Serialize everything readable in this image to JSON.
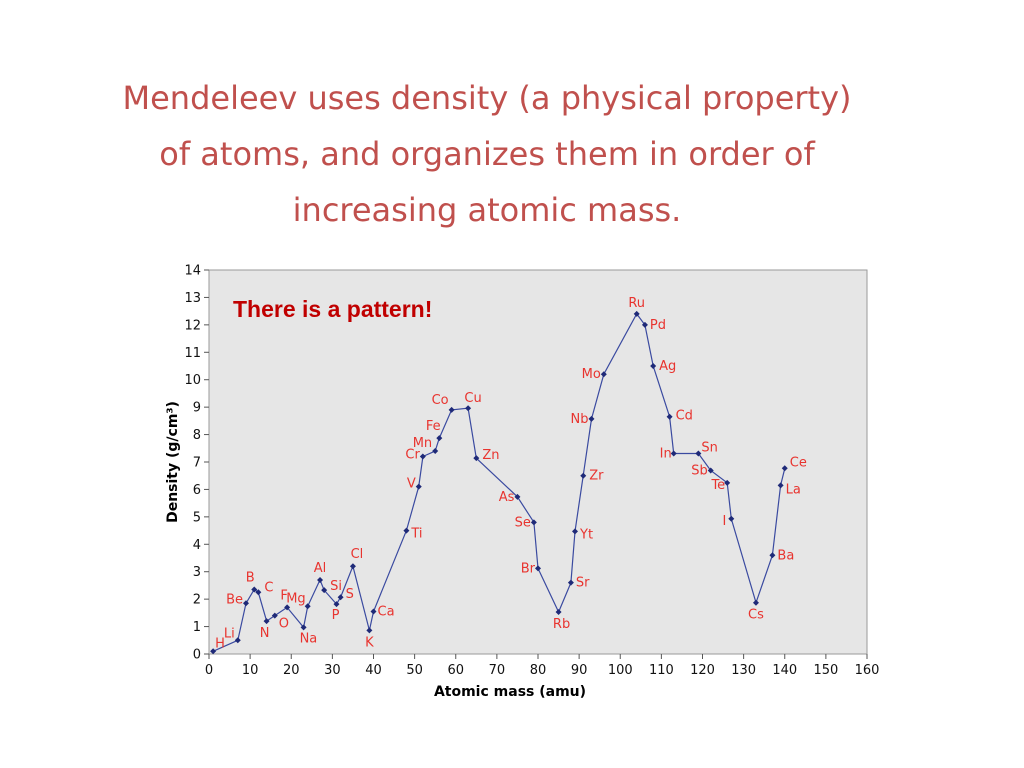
{
  "slide": {
    "title_lines": [
      "Mendeleev uses density (a physical property)",
      "of atoms, and organizes them in order of",
      "increasing atomic mass."
    ],
    "title_color": "#c0504d"
  },
  "chart_data": {
    "type": "line",
    "title": "",
    "xlabel": "Atomic mass (amu)",
    "ylabel": "Density (g/cm³)",
    "xlim": [
      0,
      160
    ],
    "ylim": [
      0,
      14
    ],
    "x_ticks": [
      0,
      10,
      20,
      30,
      40,
      50,
      60,
      70,
      80,
      90,
      100,
      110,
      120,
      130,
      140,
      150,
      160
    ],
    "y_ticks": [
      0,
      1,
      2,
      3,
      4,
      5,
      6,
      7,
      8,
      9,
      10,
      11,
      12,
      13,
      14
    ],
    "grid": false,
    "annotation": "There is a pattern!",
    "colors": {
      "line": "#3a4aa0",
      "marker": "#1f2a78",
      "labels": "#e8342f",
      "plot_bg": "#e6e6e6",
      "annotation": "#c00000"
    },
    "points": [
      {
        "label": "H",
        "x": 1,
        "y": 0.1
      },
      {
        "label": "Li",
        "x": 7,
        "y": 0.5
      },
      {
        "label": "Be",
        "x": 9,
        "y": 1.85
      },
      {
        "label": "B",
        "x": 11,
        "y": 2.35
      },
      {
        "label": "C",
        "x": 12,
        "y": 2.25
      },
      {
        "label": "N",
        "x": 14,
        "y": 1.2
      },
      {
        "label": "O",
        "x": 16,
        "y": 1.4
      },
      {
        "label": "F",
        "x": 19,
        "y": 1.7
      },
      {
        "label": "Na",
        "x": 23,
        "y": 0.97
      },
      {
        "label": "Mg",
        "x": 24,
        "y": 1.74
      },
      {
        "label": "Al",
        "x": 27,
        "y": 2.7
      },
      {
        "label": "Si",
        "x": 28,
        "y": 2.33
      },
      {
        "label": "P",
        "x": 31,
        "y": 1.82
      },
      {
        "label": "S",
        "x": 32,
        "y": 2.07
      },
      {
        "label": "Cl",
        "x": 35,
        "y": 3.2
      },
      {
        "label": "K",
        "x": 39,
        "y": 0.86
      },
      {
        "label": "Ca",
        "x": 40,
        "y": 1.55
      },
      {
        "label": "Ti",
        "x": 48,
        "y": 4.5
      },
      {
        "label": "V",
        "x": 51,
        "y": 6.1
      },
      {
        "label": "Cr",
        "x": 52,
        "y": 7.2
      },
      {
        "label": "Mn",
        "x": 55,
        "y": 7.4
      },
      {
        "label": "Fe",
        "x": 56,
        "y": 7.87
      },
      {
        "label": "Co",
        "x": 59,
        "y": 8.9
      },
      {
        "label": "Cu",
        "x": 63,
        "y": 8.96
      },
      {
        "label": "Zn",
        "x": 65,
        "y": 7.14
      },
      {
        "label": "As",
        "x": 75,
        "y": 5.73
      },
      {
        "label": "Se",
        "x": 79,
        "y": 4.8
      },
      {
        "label": "Br",
        "x": 80,
        "y": 3.12
      },
      {
        "label": "Rb",
        "x": 85,
        "y": 1.53
      },
      {
        "label": "Sr",
        "x": 88,
        "y": 2.6
      },
      {
        "label": "Yt",
        "x": 89,
        "y": 4.47
      },
      {
        "label": "Zr",
        "x": 91,
        "y": 6.5
      },
      {
        "label": "Nb",
        "x": 93,
        "y": 8.57
      },
      {
        "label": "Mo",
        "x": 96,
        "y": 10.2
      },
      {
        "label": "Ru",
        "x": 104,
        "y": 12.4
      },
      {
        "label": "Pd",
        "x": 106,
        "y": 12.0
      },
      {
        "label": "Ag",
        "x": 108,
        "y": 10.5
      },
      {
        "label": "Cd",
        "x": 112,
        "y": 8.65
      },
      {
        "label": "In",
        "x": 113,
        "y": 7.31
      },
      {
        "label": "Sn",
        "x": 119,
        "y": 7.31
      },
      {
        "label": "Sb",
        "x": 122,
        "y": 6.69
      },
      {
        "label": "Te",
        "x": 126,
        "y": 6.24
      },
      {
        "label": "I",
        "x": 127,
        "y": 4.93
      },
      {
        "label": "Cs",
        "x": 133,
        "y": 1.87
      },
      {
        "label": "Ba",
        "x": 137,
        "y": 3.6
      },
      {
        "label": "La",
        "x": 139,
        "y": 6.15
      },
      {
        "label": "Ce",
        "x": 140,
        "y": 6.77
      }
    ]
  }
}
